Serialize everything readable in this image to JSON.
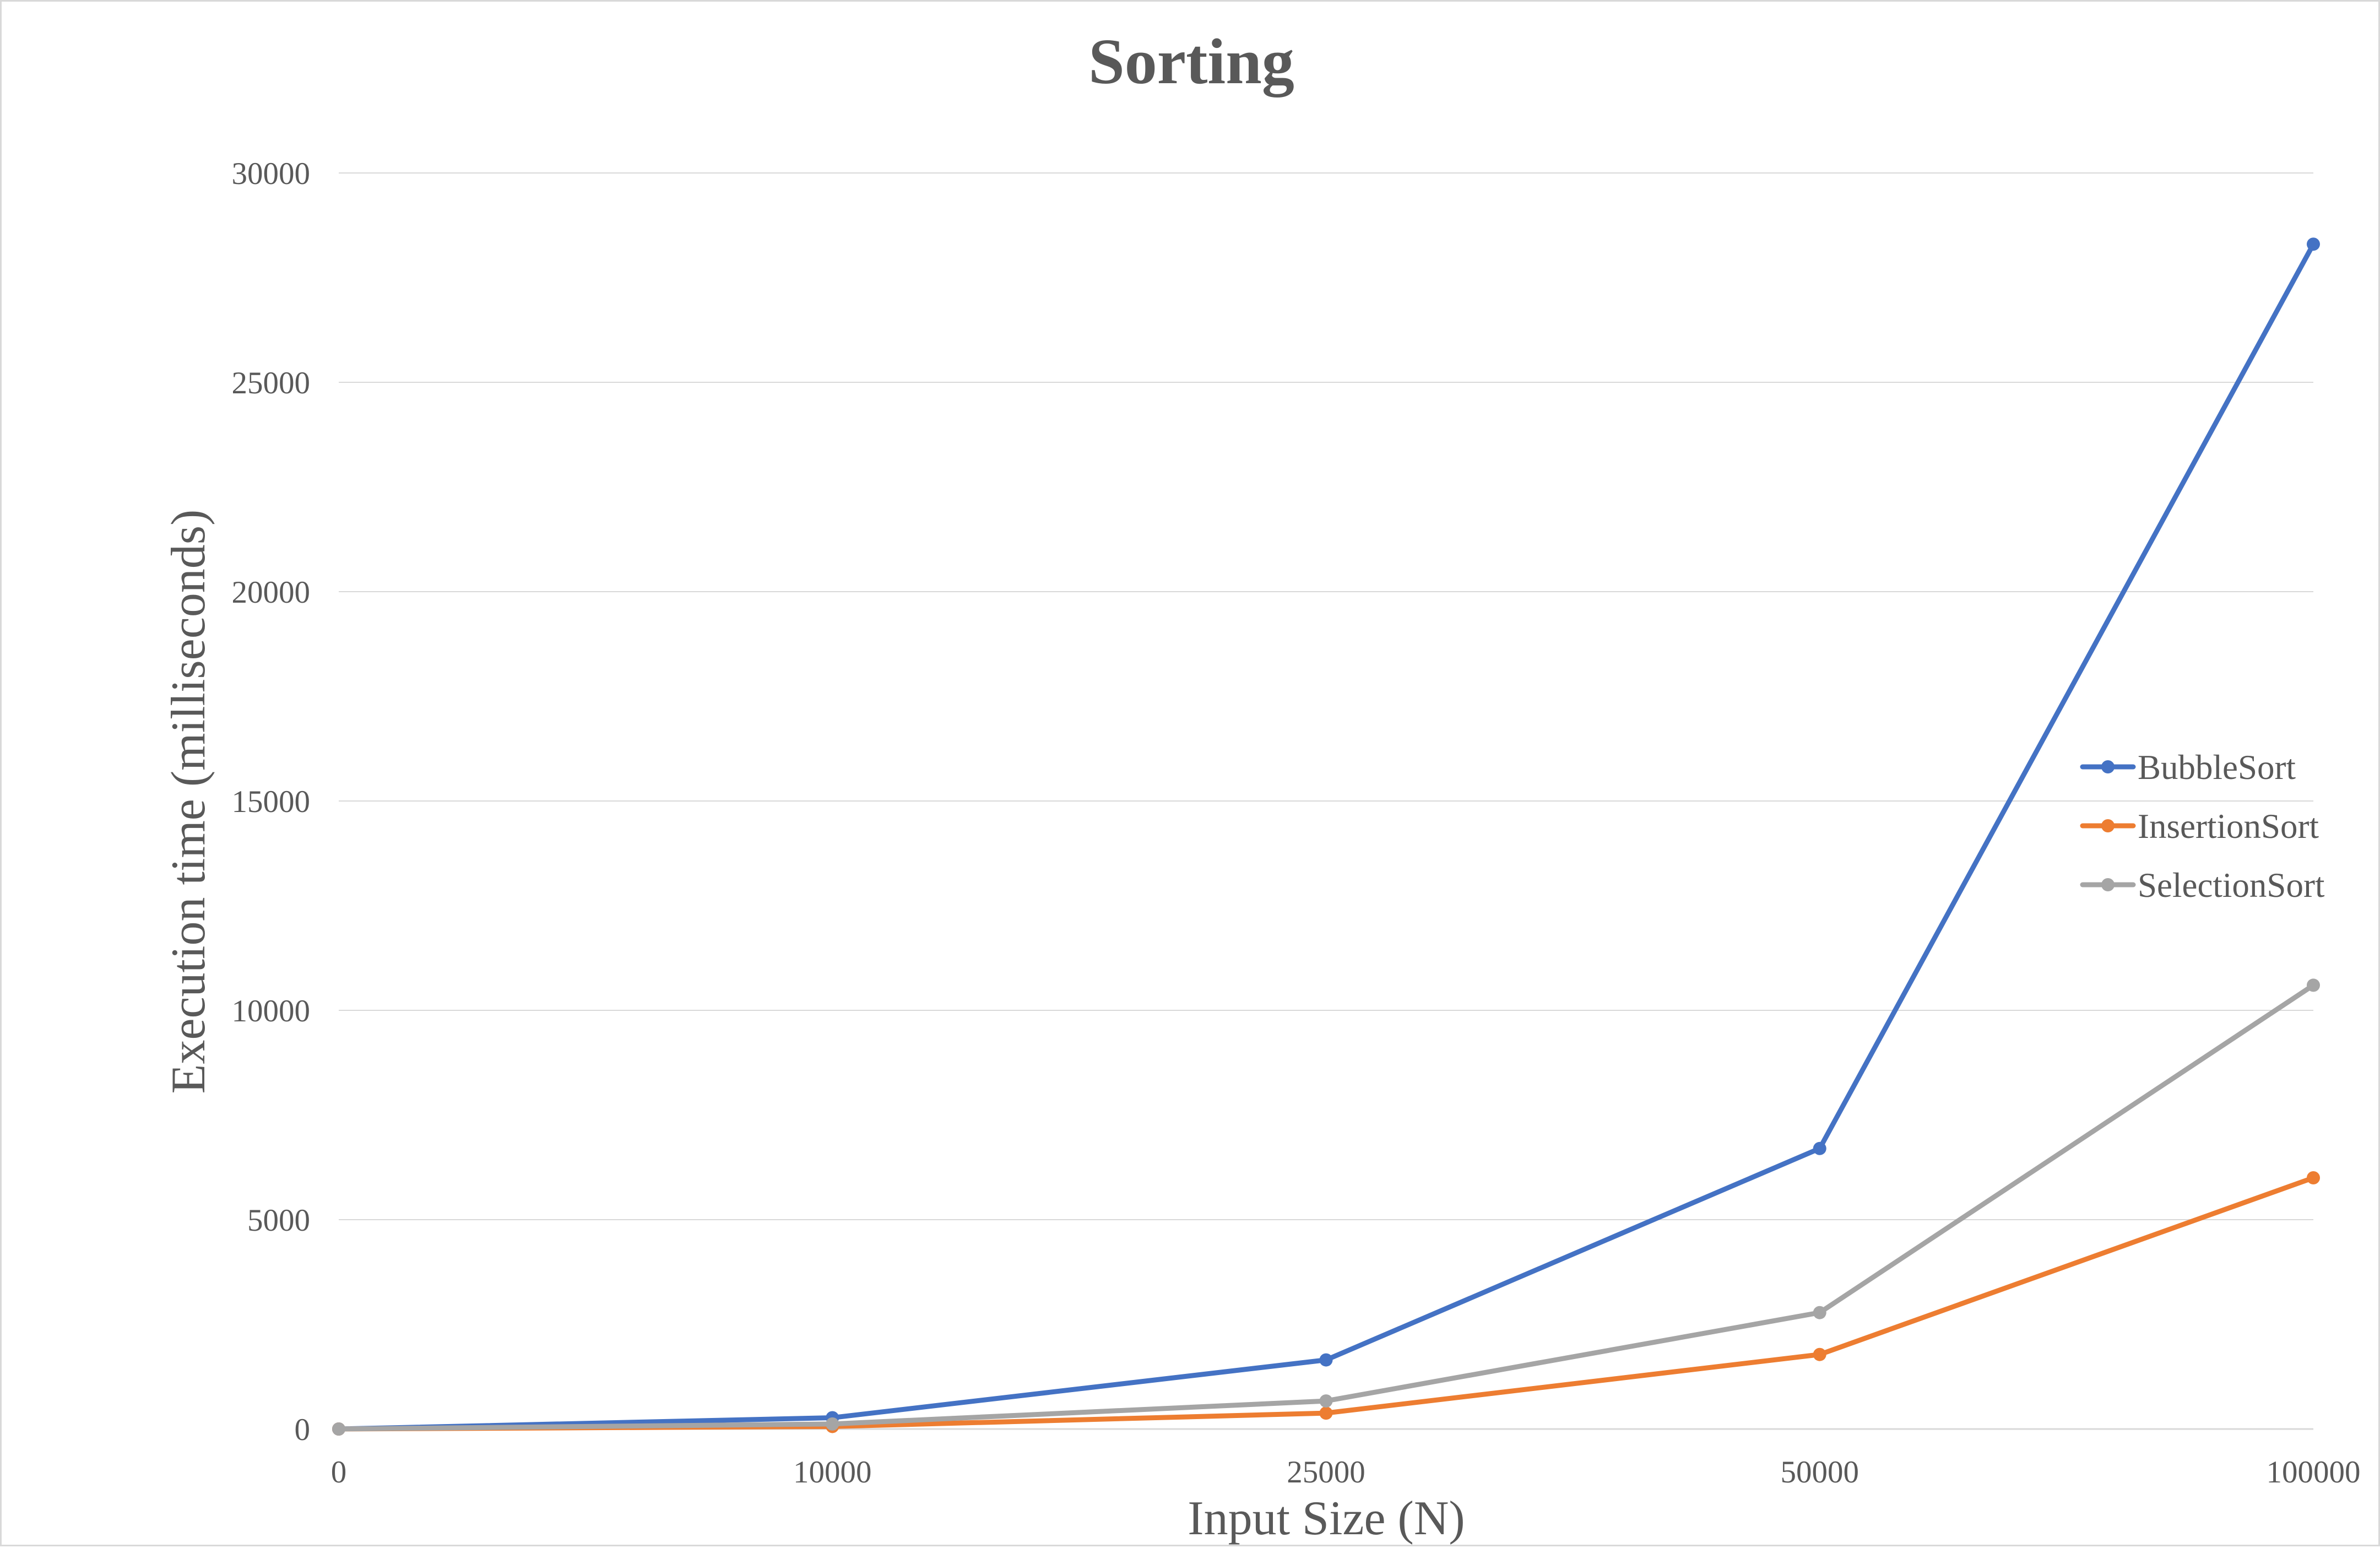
{
  "chart_data": {
    "type": "line",
    "title": "Sorting",
    "xlabel": "Input Size (N)",
    "ylabel": "Execution time (milliseconds)",
    "categories": [
      "0",
      "10000",
      "25000",
      "50000",
      "100000"
    ],
    "y_ticks": [
      "0",
      "5000",
      "10000",
      "15000",
      "20000",
      "25000",
      "30000"
    ],
    "ylim": [
      0,
      30000
    ],
    "grid": true,
    "legend_position": "right",
    "series": [
      {
        "name": "BubbleSort",
        "color": "#4472C4",
        "values": [
          0,
          270,
          1650,
          6700,
          28300
        ]
      },
      {
        "name": "InsertionSort",
        "color": "#ED7D31",
        "values": [
          0,
          60,
          380,
          1780,
          6000
        ]
      },
      {
        "name": "SelectionSort",
        "color": "#A5A5A5",
        "values": [
          0,
          120,
          670,
          2780,
          10600
        ]
      }
    ]
  }
}
